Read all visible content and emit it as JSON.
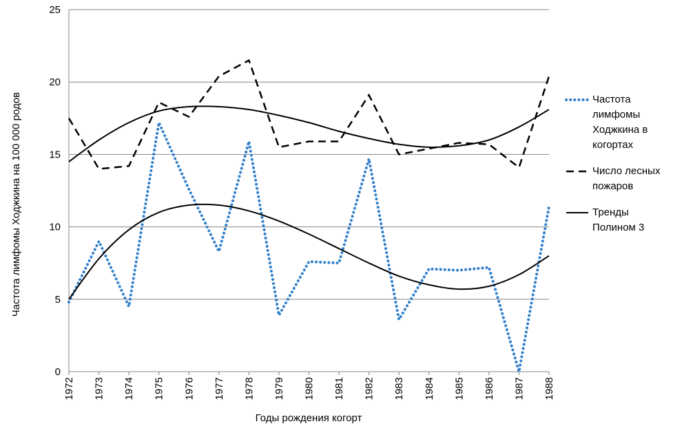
{
  "chart_data": {
    "type": "line",
    "x_label": "Годы рождения когорт",
    "y_label": "Частота лимфомы Ходжкина на 100 000 родов",
    "categories": [
      "1972",
      "1973",
      "1974",
      "1975",
      "1976",
      "1977",
      "1978",
      "1979",
      "1980",
      "1981",
      "1982",
      "1983",
      "1984",
      "1985",
      "1986",
      "1987",
      "1988"
    ],
    "ylim": [
      0,
      25
    ],
    "yticks": [
      0,
      5,
      10,
      15,
      20,
      25
    ],
    "grid": true,
    "series": [
      {
        "name": "Частота лимфомы Ходжкина в когортах",
        "color": "#2f7fcc",
        "style": "dotted",
        "values": [
          4.8,
          9.0,
          4.5,
          17.2,
          12.6,
          8.3,
          15.9,
          3.9,
          7.6,
          7.5,
          14.7,
          3.6,
          7.1,
          7.0,
          7.2,
          0.0,
          11.4
        ]
      },
      {
        "name": "Число лесных пожаров",
        "color": "#000000",
        "style": "dashed",
        "values": [
          17.5,
          14.0,
          14.2,
          18.6,
          17.6,
          20.4,
          21.5,
          15.5,
          15.9,
          15.9,
          19.1,
          15.0,
          15.4,
          15.8,
          15.7,
          14.1,
          20.4
        ]
      },
      {
        "name": "Тренды Полином 3",
        "color": "#000000",
        "style": "solid",
        "values": [
          14.5,
          16.0,
          17.2,
          18.0,
          18.3,
          18.3,
          18.1,
          17.7,
          17.2,
          16.6,
          16.1,
          15.7,
          15.5,
          15.6,
          16.0,
          16.9,
          18.1
        ]
      },
      {
        "color": "#000000",
        "style": "solid",
        "values": [
          5.0,
          7.8,
          9.8,
          11.0,
          11.5,
          11.5,
          11.1,
          10.4,
          9.5,
          8.5,
          7.5,
          6.6,
          6.0,
          5.7,
          5.9,
          6.7,
          8.0
        ]
      }
    ]
  }
}
